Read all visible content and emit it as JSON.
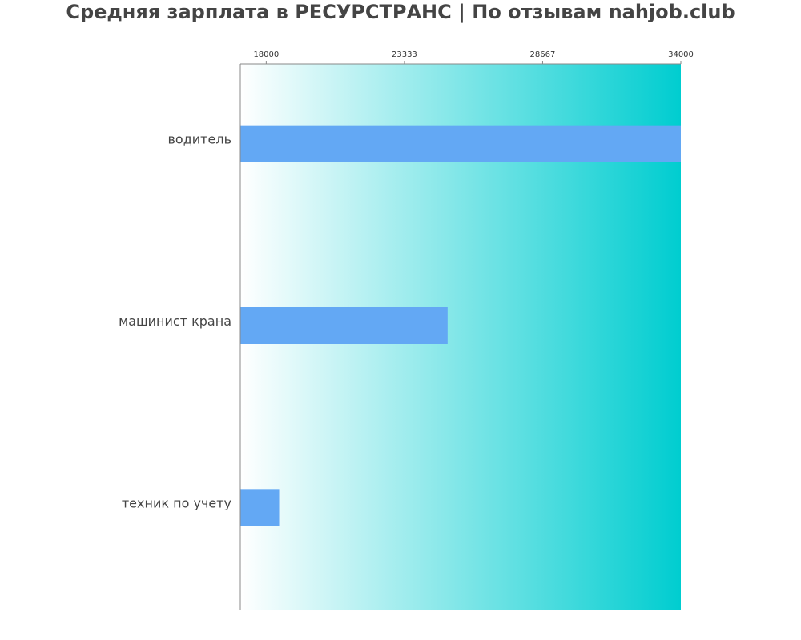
{
  "chart_data": {
    "type": "bar",
    "orientation": "horizontal",
    "title": "Средняя зарплата в РЕСУРСТРАНС | По отзывам nahjob.club",
    "xlabel": "",
    "ylabel": "",
    "categories": [
      "водитель",
      "машинист крана",
      "техник по учету"
    ],
    "values": [
      34000,
      25000,
      18500
    ],
    "xlim": [
      17000,
      34000
    ],
    "xticks": [
      18000,
      23333,
      28667,
      34000
    ],
    "xtick_labels": [
      "18000",
      "23333",
      "28667",
      "34000"
    ],
    "x_axis_position": "top",
    "grid": false,
    "legend": "none"
  },
  "colors": {
    "bar": "#63a8f4",
    "gradient_start": "#ffffff",
    "gradient_end": "#00cdd0",
    "title": "#444444",
    "axis": "#888888",
    "text": "#444444"
  }
}
